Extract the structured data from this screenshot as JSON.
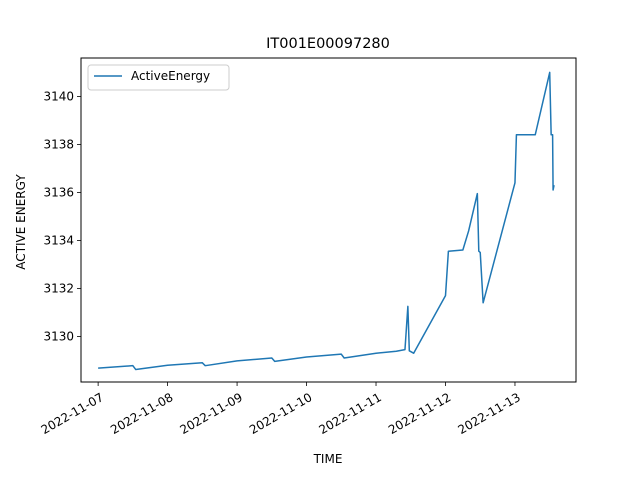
{
  "chart_data": {
    "type": "line",
    "title": "IT001E00097280",
    "xlabel": "TIME",
    "ylabel": "ACTIVE ENERGY",
    "xlim": [
      "2022-11-06T18:05",
      "2022-11-13T21:05"
    ],
    "ylim": [
      3128.1,
      3141.6
    ],
    "x_ticks": [
      "2022-11-07",
      "2022-11-08",
      "2022-11-09",
      "2022-11-10",
      "2022-11-11",
      "2022-11-12",
      "2022-11-13"
    ],
    "y_ticks": [
      3130,
      3132,
      3134,
      3136,
      3138,
      3140
    ],
    "grid": false,
    "legend_position": "top-left",
    "series": [
      {
        "name": "ActiveEnergy",
        "color": "#1f77b4",
        "points": [
          [
            "2022-11-07T00:00",
            3128.68
          ],
          [
            "2022-11-07T12:00",
            3128.78
          ],
          [
            "2022-11-07T13:00",
            3128.62
          ],
          [
            "2022-11-08T00:00",
            3128.8
          ],
          [
            "2022-11-08T12:00",
            3128.9
          ],
          [
            "2022-11-08T13:00",
            3128.78
          ],
          [
            "2022-11-09T00:00",
            3128.98
          ],
          [
            "2022-11-09T12:00",
            3129.1
          ],
          [
            "2022-11-09T13:00",
            3128.96
          ],
          [
            "2022-11-10T00:00",
            3129.14
          ],
          [
            "2022-11-10T12:00",
            3129.26
          ],
          [
            "2022-11-10T13:00",
            3129.1
          ],
          [
            "2022-11-11T00:00",
            3129.3
          ],
          [
            "2022-11-11T07:00",
            3129.38
          ],
          [
            "2022-11-11T10:00",
            3129.45
          ],
          [
            "2022-11-11T11:00",
            3131.25
          ],
          [
            "2022-11-11T11:30",
            3129.4
          ],
          [
            "2022-11-11T13:00",
            3129.3
          ],
          [
            "2022-11-12T00:00",
            3131.7
          ],
          [
            "2022-11-12T01:00",
            3133.55
          ],
          [
            "2022-11-12T06:00",
            3133.6
          ],
          [
            "2022-11-12T08:00",
            3134.4
          ],
          [
            "2022-11-12T11:00",
            3135.95
          ],
          [
            "2022-11-12T11:30",
            3133.55
          ],
          [
            "2022-11-12T12:00",
            3133.5
          ],
          [
            "2022-11-12T13:00",
            3131.4
          ],
          [
            "2022-11-13T00:00",
            3136.4
          ],
          [
            "2022-11-13T00:30",
            3138.4
          ],
          [
            "2022-11-13T07:00",
            3138.4
          ],
          [
            "2022-11-13T12:00",
            3141.0
          ],
          [
            "2022-11-13T12:30",
            3138.4
          ],
          [
            "2022-11-13T13:00",
            3138.4
          ],
          [
            "2022-11-13T13:10",
            3136.1
          ],
          [
            "2022-11-13T13:30",
            3136.3
          ]
        ]
      }
    ]
  }
}
